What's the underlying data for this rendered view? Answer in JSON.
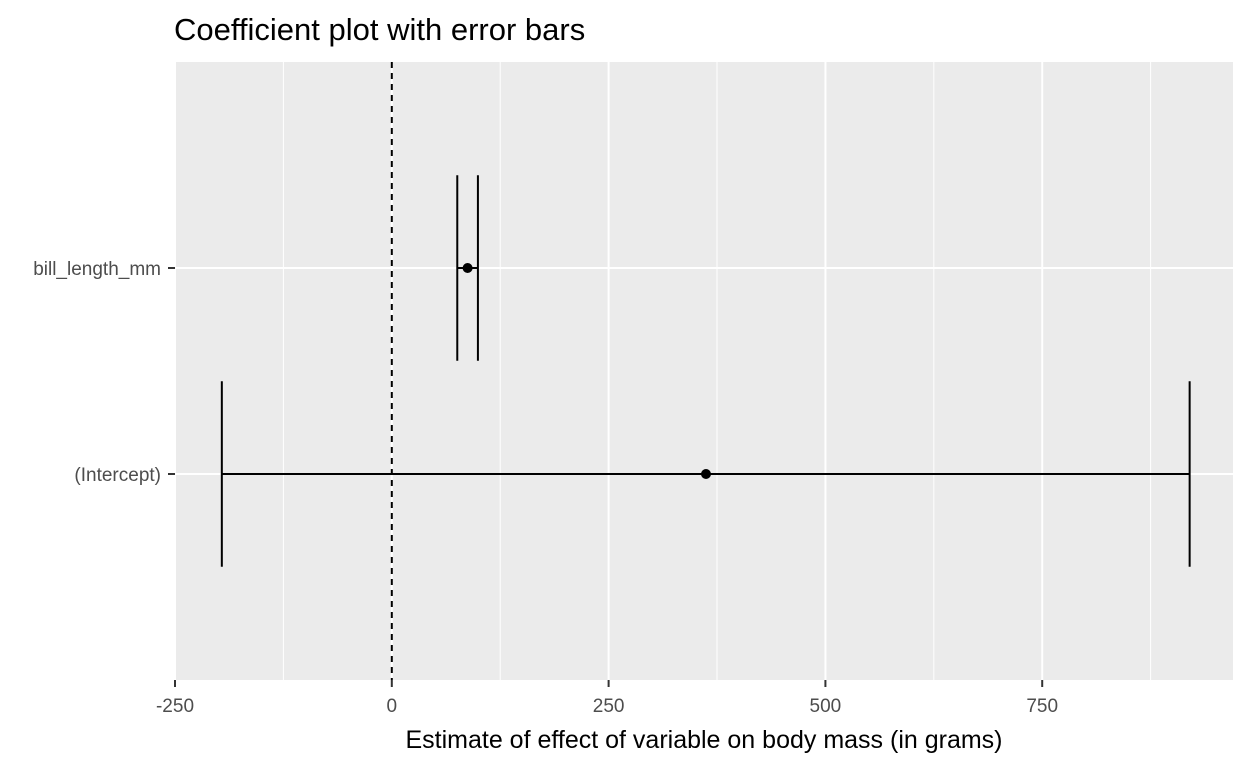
{
  "chart_data": {
    "type": "errorbar",
    "title": "Coefficient plot with error bars",
    "xlabel": "Estimate of effect of variable on body mass (in grams)",
    "ylabel": "",
    "xlim": [
      -250,
      970
    ],
    "x_ticks": [
      -250,
      0,
      250,
      500,
      750
    ],
    "x_tick_labels": [
      "-250",
      "0",
      "250",
      "500",
      "750"
    ],
    "reference_line": {
      "x": 0,
      "style": "dashed"
    },
    "background": "#ebebeb",
    "grid_color": "#ffffff",
    "categories": [
      "(Intercept)",
      "bill_length_mm"
    ],
    "points": [
      {
        "term": "(Intercept)",
        "estimate": 362.3,
        "low": -196,
        "high": 920
      },
      {
        "term": "bill_length_mm",
        "estimate": 87.4,
        "low": 75.5,
        "high": 99.3
      }
    ],
    "colors": {
      "line": "#000000",
      "tick_text": "#4d4d4d"
    }
  }
}
